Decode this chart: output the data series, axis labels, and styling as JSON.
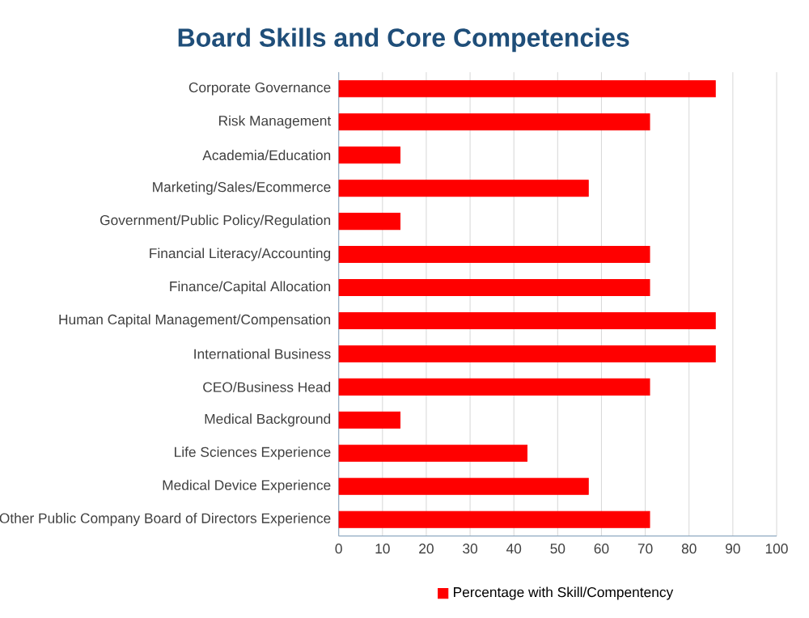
{
  "chart_data": {
    "type": "bar",
    "orientation": "horizontal",
    "title": "Board Skills and Core Competencies",
    "categories": [
      "Corporate Governance",
      "Risk Management",
      "Academia/Education",
      "Marketing/Sales/Ecommerce",
      "Government/Public Policy/Regulation",
      "Financial Literacy/Accounting",
      "Finance/Capital Allocation",
      "Human Capital Management/Compensation",
      "International Business",
      "CEO/Business Head",
      "Medical Background",
      "Life Sciences Experience",
      "Medical Device Experience",
      "Other Public Company Board of Directors Experience"
    ],
    "series": [
      {
        "name": "Percentage with Skill/Compentency",
        "color": "#ff0000",
        "values": [
          86,
          71,
          14,
          57,
          14,
          71,
          71,
          86,
          86,
          71,
          14,
          43,
          57,
          71
        ]
      }
    ],
    "xlim": [
      0,
      100
    ],
    "xticks": [
      0,
      10,
      20,
      30,
      40,
      50,
      60,
      70,
      80,
      90,
      100
    ],
    "grid": "x",
    "legend": "bottom"
  }
}
